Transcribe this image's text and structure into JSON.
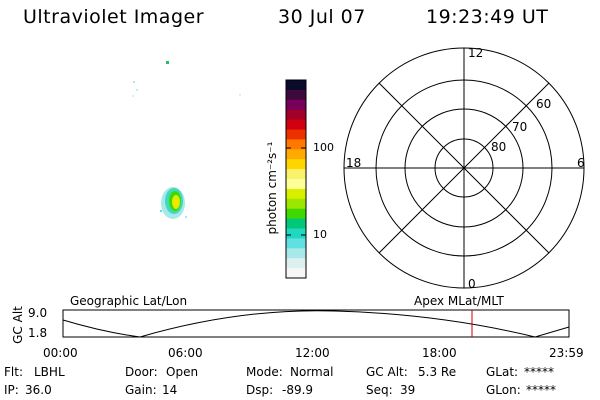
{
  "header": {
    "instrument": "Ultraviolet Imager",
    "date": "30 Jul 07",
    "time": "19:23:49 UT"
  },
  "colorbar": {
    "label": "photon cm⁻²s⁻¹",
    "tick_labels": [
      "100",
      "10"
    ],
    "tick_values": [
      100,
      10
    ],
    "colors": [
      "#0a0a2a",
      "#3c0a3c",
      "#78005a",
      "#a0002a",
      "#d00010",
      "#ee3000",
      "#ff7800",
      "#ffaa00",
      "#ffd500",
      "#f8f36a",
      "#ffff9a",
      "#d8f000",
      "#9ae800",
      "#40d800",
      "#00c878",
      "#20d8c0",
      "#60e0e0",
      "#a8e8e8",
      "#dcf0f0",
      "#f6f6f6"
    ]
  },
  "polar_plot": {
    "mlt_labels": [
      "12",
      "18",
      "6",
      "0"
    ],
    "lat_labels": [
      "60",
      "70",
      "80"
    ]
  },
  "timeline": {
    "left_title": "Geographic Lat/Lon",
    "right_title": "Apex MLat/MLT",
    "y_label": "GC Alt",
    "y_ticks": [
      "9.0",
      "1.8"
    ],
    "x_ticks": [
      "00:00",
      "06:00",
      "12:00",
      "18:00",
      "23:59"
    ],
    "marker_time": "19:23:49",
    "marker_color": "#cc0000"
  },
  "status": {
    "row1": [
      {
        "label": "Flt:",
        "value": "LBHL"
      },
      {
        "label": "Door:",
        "value": "Open"
      },
      {
        "label": "Mode:",
        "value": "Normal"
      },
      {
        "label": "GC Alt:",
        "value": "5.3 Re"
      },
      {
        "label": "GLat:",
        "value": "*****"
      }
    ],
    "row2": [
      {
        "label": "IP:",
        "value": "36.0"
      },
      {
        "label": "Gain:",
        "value": "14"
      },
      {
        "label": "Dsp:",
        "value": "-89.9"
      },
      {
        "label": "Seq:",
        "value": "39"
      },
      {
        "label": "GLon:",
        "value": "*****"
      }
    ]
  }
}
